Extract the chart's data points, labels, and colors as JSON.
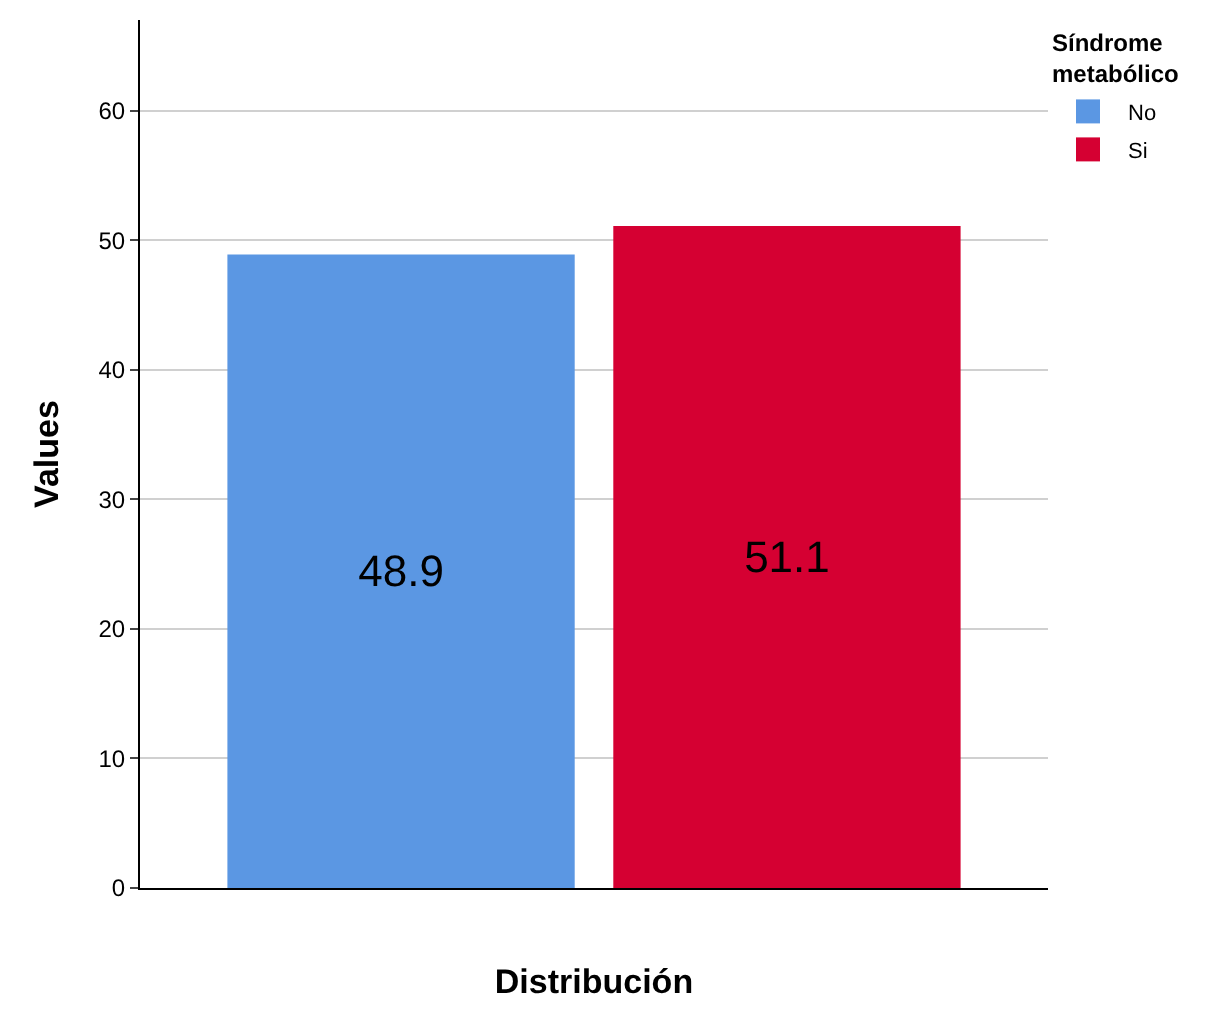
{
  "chart_data": {
    "type": "bar",
    "xlabel": "Distribución",
    "ylabel": "Values",
    "legend_title": "Síndrome metabólico",
    "categories": [
      null
    ],
    "series": [
      {
        "name": "No",
        "color": "#5b97e3",
        "values": [
          48.9
        ]
      },
      {
        "name": "Si",
        "color": "#d50032",
        "values": [
          51.1
        ]
      }
    ],
    "ylim": [
      0,
      67
    ],
    "yticks": [
      0,
      10,
      20,
      30,
      40,
      50,
      60
    ],
    "grid": "y",
    "legend": "top right",
    "data_labels": true,
    "tick_labels": "y"
  }
}
